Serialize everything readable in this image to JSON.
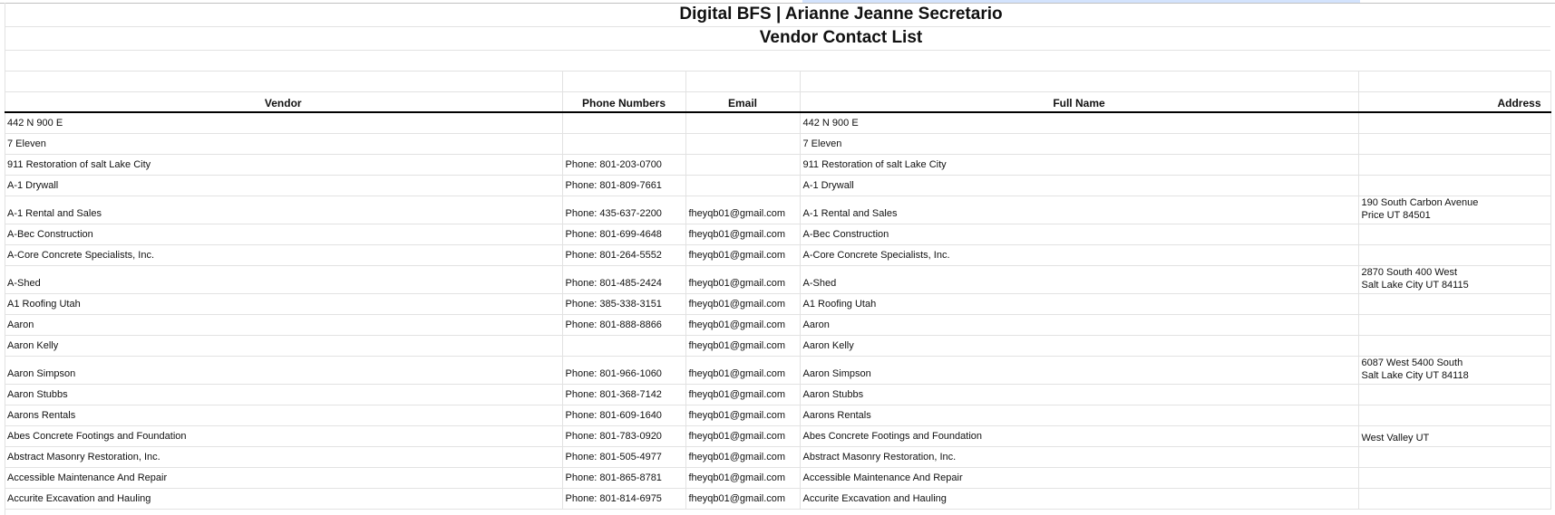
{
  "title": {
    "line1": "Digital BFS | Arianne Jeanne Secretario",
    "line2": "Vendor Contact List"
  },
  "columns": [
    "Vendor",
    "Phone Numbers",
    "Email",
    "Full Name",
    "Address"
  ],
  "rows": [
    {
      "vendor": "442 N 900 E",
      "phone": "",
      "email": "",
      "full_name": "442 N 900 E",
      "address": ""
    },
    {
      "vendor": "7 Eleven",
      "phone": "",
      "email": "",
      "full_name": "7 Eleven",
      "address": ""
    },
    {
      "vendor": "911 Restoration of salt Lake City",
      "phone": "Phone: 801-203-0700",
      "email": "",
      "full_name": "911 Restoration of salt Lake City",
      "address": ""
    },
    {
      "vendor": "A-1 Drywall",
      "phone": "Phone: 801-809-7661",
      "email": "",
      "full_name": "A-1 Drywall",
      "address": ""
    },
    {
      "vendor": "A-1 Rental and Sales",
      "phone": "Phone: 435-637-2200",
      "email": "fheyqb01@gmail.com",
      "full_name": "A-1 Rental and Sales",
      "address": "190 South Carbon Avenue\nPrice UT 84501"
    },
    {
      "vendor": "A-Bec Construction",
      "phone": "Phone: 801-699-4648",
      "email": "fheyqb01@gmail.com",
      "full_name": "A-Bec Construction",
      "address": ""
    },
    {
      "vendor": "A-Core Concrete Specialists, Inc.",
      "phone": "Phone: 801-264-5552",
      "email": "fheyqb01@gmail.com",
      "full_name": "A-Core Concrete Specialists, Inc.",
      "address": ""
    },
    {
      "vendor": "A-Shed",
      "phone": "Phone: 801-485-2424",
      "email": "fheyqb01@gmail.com",
      "full_name": "A-Shed",
      "address": "2870 South 400 West\nSalt Lake City UT 84115"
    },
    {
      "vendor": "A1 Roofing Utah",
      "phone": "Phone: 385-338-3151",
      "email": "fheyqb01@gmail.com",
      "full_name": "A1 Roofing Utah",
      "address": ""
    },
    {
      "vendor": "Aaron",
      "phone": "Phone: 801-888-8866",
      "email": "fheyqb01@gmail.com",
      "full_name": "Aaron",
      "address": ""
    },
    {
      "vendor": "Aaron Kelly",
      "phone": "",
      "email": "fheyqb01@gmail.com",
      "full_name": "Aaron Kelly",
      "address": ""
    },
    {
      "vendor": "Aaron Simpson",
      "phone": "Phone: 801-966-1060",
      "email": "fheyqb01@gmail.com",
      "full_name": "Aaron Simpson",
      "address": "6087 West 5400 South\nSalt Lake City UT 84118"
    },
    {
      "vendor": "Aaron Stubbs",
      "phone": "Phone: 801-368-7142",
      "email": "fheyqb01@gmail.com",
      "full_name": "Aaron Stubbs",
      "address": ""
    },
    {
      "vendor": "Aarons Rentals",
      "phone": "Phone: 801-609-1640",
      "email": "fheyqb01@gmail.com",
      "full_name": "Aarons Rentals",
      "address": ""
    },
    {
      "vendor": "Abes Concrete Footings and Foundation",
      "phone": "Phone: 801-783-0920",
      "email": "fheyqb01@gmail.com",
      "full_name": "Abes Concrete Footings and Foundation",
      "address": "West Valley UT"
    },
    {
      "vendor": "Abstract Masonry Restoration, Inc.",
      "phone": "Phone: 801-505-4977",
      "email": "fheyqb01@gmail.com",
      "full_name": "Abstract Masonry Restoration, Inc.",
      "address": ""
    },
    {
      "vendor": "Accessible Maintenance And Repair",
      "phone": "Phone: 801-865-8781",
      "email": "fheyqb01@gmail.com",
      "full_name": "Accessible Maintenance And Repair",
      "address": ""
    },
    {
      "vendor": "Accurite Excavation and Hauling",
      "phone": "Phone: 801-814-6975",
      "email": "fheyqb01@gmail.com",
      "full_name": "Accurite Excavation and Hauling",
      "address": ""
    }
  ],
  "colors": {
    "selection": "#d3e3fd",
    "grid": "#e2e2e2",
    "header_border": "#000000"
  }
}
